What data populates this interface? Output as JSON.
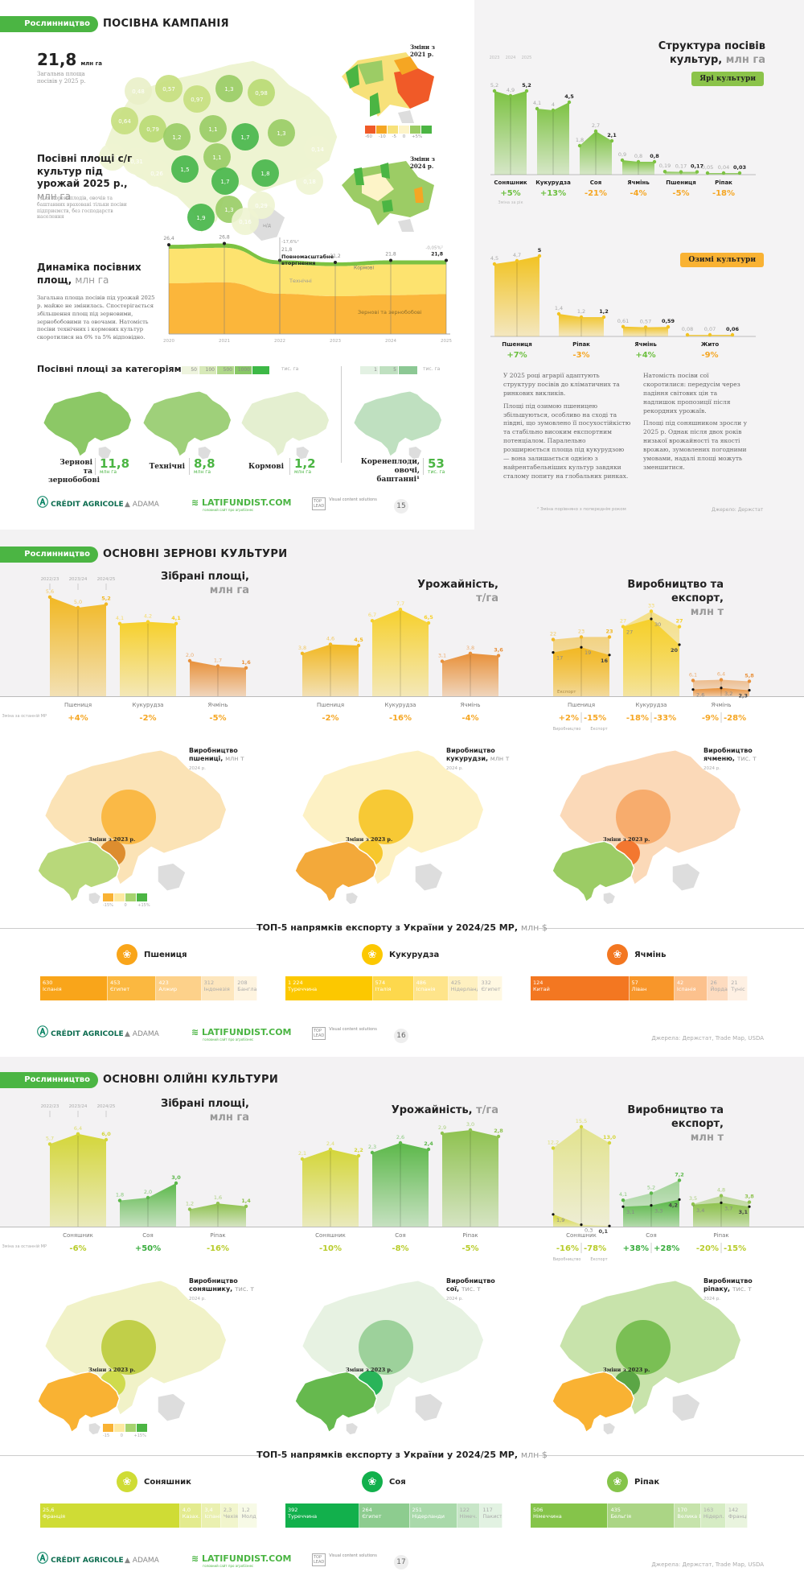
{
  "section_label": "Рослинництво",
  "colors": {
    "green": "#4bb543",
    "orange": "#f5a623",
    "yellow": "#f2c71f",
    "dark_orange": "#e57b1a",
    "red": "#f05a28",
    "sunflower": "#cddc39",
    "soy": "#4caf50"
  },
  "page1": {
    "title": "ПОСІВНА КАМПАНІЯ",
    "total_value": "21,8",
    "total_unit": "млн га",
    "total_desc": "Загальна площа посівів у 2025 р.",
    "map_title": "Посівні площі с/г культур під урожай",
    "map_title2": "2025 р.,",
    "map_unit": "млн га",
    "map_footnote": "¹ Для коренеплодів, овочів та баштанних враховані тільки посіви підприємств, без господарств населення",
    "map_regions": [
      "0,48",
      "0,57",
      "0,97",
      "1,3",
      "0,98",
      "0,64",
      "0,79",
      "1,2",
      "1,1",
      "1,1",
      "1,7",
      "1,3",
      "0,13",
      "0,31",
      "0,26",
      "1,5",
      "1,7",
      "1,8",
      "0,14",
      "0,18",
      "1,9",
      "1,3",
      "0,29",
      "0,16"
    ],
    "crimea_label": "н/д",
    "change_2021_label": "Зміни з 2021 р.",
    "change_2024_label": "Зміни з 2024 р.",
    "change_legend": [
      "-60",
      "-10",
      "-5",
      "0",
      "+5%"
    ],
    "dynamics": {
      "title": "Динаміка посівних площ,",
      "unit": "млн га",
      "text": "Загальна площа посівів під урожай 2025 р. майже не змінилась. Спостерігається збільшення площ під зерновими, зернобобовими та овочами. Натомість посіви технічних і кормових культур скоротилися на 6% та 5% відповідно.",
      "event_label": "Повномасштабне вторгнення",
      "event_change": "-17,6%²",
      "last_change": "-0,05%²",
      "layer_labels": {
        "fodder": "Кормові",
        "technical": "Технічні",
        "grain": "Зернові та зернобобові"
      }
    },
    "categories": {
      "title": "Посівні площі за категоріями",
      "legend": [
        "50",
        "100",
        "500",
        "1000"
      ],
      "legend_unit": "тис. га",
      "legend2": [
        "1",
        "5"
      ],
      "items": [
        {
          "label": "Зернові та зернобобові",
          "value": "11,8",
          "unit": "млн га"
        },
        {
          "label": "Технічні",
          "value": "8,8",
          "unit": "млн га"
        },
        {
          "label": "Кормові",
          "value": "1,2",
          "unit": "млн га"
        },
        {
          "label": "Коренеплоди, овочі, баштанні¹",
          "value": "53",
          "unit": "тис. га"
        }
      ]
    },
    "structure": {
      "title": "Структура посівів культур,",
      "unit": "млн га",
      "years": [
        "2023",
        "2024",
        "2025"
      ],
      "spring_tag": "Ярі культури",
      "winter_tag": "Озимі культури",
      "change_note": "Зміна за рік",
      "paragraphs_left": [
        "У 2025 році аграрії адаптують структуру посівів до кліматичних та ринкових викликів.",
        "Площі під озимою пшеницею збільшуються, особливо на сході та півдні, що зумовлено її посухостійкістю та стабільно високим експортним потенціалом. Паралельно розширюється площа під кукурудзою — вона залишається однією з найрентабельніших культур завдяки сталому попиту на глобальних ринках."
      ],
      "paragraphs_right": [
        "Натомість посіви сої скоротилися: передусім через падіння світових цін та надлишок пропозиції після рекордних урожаїв.",
        "Площі під соняшником зросли у 2025 р. Однак після двох років низької врожайності та якості врожаю, зумовлених погодними умовами, надалі площі можуть зменшитися."
      ],
      "footnote": "² Зміна порівняно з попереднім роком",
      "source": "Джерело: Держстат"
    },
    "page_number": "15"
  },
  "page2": {
    "title": "ОСНОВНІ ЗЕРНОВІ КУЛЬТУРИ",
    "seasons": [
      "2022/23",
      "2023/24",
      "2024/25"
    ],
    "change_note": "Зміна за останній МР",
    "area_title": "Зібрані площі,",
    "area_unit": "млн га",
    "yield_title": "Урожайність,",
    "yield_unit": "т/га",
    "prod_title": "Виробництво та експорт,",
    "prod_unit": "млн т",
    "prod_note": "Виробництво",
    "exp_note": "Експорт",
    "maps": [
      {
        "title": "Виробництво пшениці,",
        "unit": "млн т",
        "year": "2024 р."
      },
      {
        "title": "Виробництво кукурудзи,",
        "unit": "млн т",
        "year": "2024 р."
      },
      {
        "title": "Виробництво ячменю,",
        "unit": "тис. т",
        "year": "2024 р."
      }
    ],
    "changes_label": "Зміни з 2023 р.",
    "changes_legend": [
      "-15%",
      "0",
      "+15%"
    ],
    "export_title": "ТОП-5 напрямків експорту з України у 2024/25 МР,",
    "export_unit": "млн $",
    "exports": [
      {
        "crop": "Пшениця",
        "items": [
          {
            "v": "630",
            "c": "Іспанія"
          },
          {
            "v": "453",
            "c": "Єгипет"
          },
          {
            "v": "423",
            "c": "Алжир"
          },
          {
            "v": "312",
            "c": "Індонезія"
          },
          {
            "v": "208",
            "c": "Бангладеш"
          }
        ]
      },
      {
        "crop": "Кукурудза",
        "items": [
          {
            "v": "1 224",
            "c": "Туреччина"
          },
          {
            "v": "574",
            "c": "Італія"
          },
          {
            "v": "486",
            "c": "Іспанія"
          },
          {
            "v": "425",
            "c": "Нідерланд."
          },
          {
            "v": "332",
            "c": "Єгипет"
          }
        ]
      },
      {
        "crop": "Ячмінь",
        "items": [
          {
            "v": "124",
            "c": "Китай"
          },
          {
            "v": "57",
            "c": "Ліван"
          },
          {
            "v": "42",
            "c": "Іспанія"
          },
          {
            "v": "26",
            "c": "Йордан."
          },
          {
            "v": "21",
            "c": "Туніс"
          }
        ]
      }
    ],
    "source": "Джерела: Держстат, Trade Map, USDA",
    "page_number": "16"
  },
  "page3": {
    "title": "ОСНОВНІ ОЛІЙНІ КУЛЬТУРИ",
    "seasons": [
      "2022/23",
      "2023/24",
      "2024/25"
    ],
    "change_note": "Зміна за останній МР",
    "area_title": "Зібрані площі,",
    "area_unit": "млн га",
    "yield_title": "Урожайність,",
    "yield_unit": "т/га",
    "prod_title": "Виробництво та експорт,",
    "prod_unit": "млн т",
    "prod_note": "Виробництво",
    "exp_note": "Експорт",
    "maps": [
      {
        "title": "Виробництво соняшнику,",
        "unit": "тис. т",
        "year": "2024 р."
      },
      {
        "title": "Виробництво сої,",
        "unit": "тис. т",
        "year": "2024 р."
      },
      {
        "title": "Виробництво ріпаку,",
        "unit": "тис. т",
        "year": "2024 р."
      }
    ],
    "changes_label": "Зміни з 2023 р.",
    "changes_legend": [
      "-15",
      "0",
      "+15%"
    ],
    "export_title": "ТОП-5 напрямків експорту з України у 2024/25 МР,",
    "export_unit": "млн $",
    "exports": [
      {
        "crop": "Соняшник",
        "items": [
          {
            "v": "25,6",
            "c": "Франція"
          },
          {
            "v": "4,0",
            "c": "Казах."
          },
          {
            "v": "3,4",
            "c": "Іспанія"
          },
          {
            "v": "2,3",
            "c": "Чехія"
          },
          {
            "v": "1,2",
            "c": "Молдова"
          }
        ]
      },
      {
        "crop": "Соя",
        "items": [
          {
            "v": "392",
            "c": "Туреччина"
          },
          {
            "v": "264",
            "c": "Єгипет"
          },
          {
            "v": "251",
            "c": "Нідерланди"
          },
          {
            "v": "122",
            "c": "Німеч."
          },
          {
            "v": "117",
            "c": "Пакистан"
          }
        ]
      },
      {
        "crop": "Ріпак",
        "items": [
          {
            "v": "506",
            "c": "Німеччина"
          },
          {
            "v": "435",
            "c": "Бельгія"
          },
          {
            "v": "170",
            "c": "Велика Британія"
          },
          {
            "v": "163",
            "c": "Нідерл."
          },
          {
            "v": "142",
            "c": "Франція"
          }
        ]
      }
    ],
    "source": "Джерела: Держстат, Trade Map, USDA",
    "page_number": "17"
  },
  "footer_logos": {
    "ca": "CRÉDIT AGRICOLE",
    "adama": "ADAMA",
    "latifundist": "LATIFUNDIST.COM",
    "latifundist_sub": "головний сайт про агробізнес",
    "toplead": "Visual content solutions"
  },
  "chart_data": [
    {
      "id": "sown-area-dynamics",
      "type": "area",
      "title": "Динаміка посівних площ, млн га",
      "x": [
        "2020",
        "2021",
        "2022",
        "2023",
        "2024",
        "2025"
      ],
      "totals": [
        26.4,
        26.8,
        21.8,
        21.2,
        21.8,
        21.8
      ],
      "series": [
        {
          "name": "Зернові та зернобобові",
          "values": [
            15.0,
            15.3,
            11.9,
            11.2,
            11.5,
            11.8
          ]
        },
        {
          "name": "Технічні",
          "values": [
            10.2,
            10.2,
            8.7,
            8.9,
            9.1,
            8.8
          ]
        },
        {
          "name": "Кормові",
          "values": [
            1.2,
            1.3,
            1.2,
            1.1,
            1.2,
            1.2
          ]
        }
      ],
      "annotations": [
        {
          "x": "2022",
          "text": "Повномасштабне вторгнення",
          "change": "-17,6%"
        },
        {
          "x": "2025",
          "change": "-0,05%"
        }
      ]
    },
    {
      "id": "spring-crops",
      "type": "bar",
      "title": "Структура посівів культур, млн га — Ярі культури",
      "x": [
        "2023",
        "2024",
        "2025"
      ],
      "categories": [
        "Соняшник",
        "Кукурудза",
        "Соя",
        "Ячмінь",
        "Пшениця",
        "Ріпак"
      ],
      "series": [
        {
          "name": "Соняшник",
          "values": [
            5.2,
            4.9,
            5.2
          ],
          "change": "+5%"
        },
        {
          "name": "Кукурудза",
          "values": [
            4.1,
            4.0,
            4.5
          ],
          "change": "+13%"
        },
        {
          "name": "Соя",
          "values": [
            1.8,
            2.7,
            2.1
          ],
          "change": "-21%"
        },
        {
          "name": "Ячмінь",
          "values": [
            0.9,
            0.8,
            0.8
          ],
          "change": "-4%"
        },
        {
          "name": "Пшениця",
          "values": [
            0.19,
            0.17,
            0.17
          ],
          "change": "-5%"
        },
        {
          "name": "Ріпак",
          "values": [
            0.05,
            0.04,
            0.03
          ],
          "change": "-18%"
        }
      ]
    },
    {
      "id": "winter-crops",
      "type": "bar",
      "title": "Озимі культури, млн га",
      "x": [
        "2023",
        "2024",
        "2025"
      ],
      "categories": [
        "Пшениця",
        "Ріпак",
        "Ячмінь",
        "Жито"
      ],
      "series": [
        {
          "name": "Пшениця",
          "values": [
            4.5,
            4.7,
            5.0
          ],
          "change": "+7%"
        },
        {
          "name": "Ріпак",
          "values": [
            1.4,
            1.2,
            1.2
          ],
          "change": "-3%"
        },
        {
          "name": "Ячмінь",
          "values": [
            0.61,
            0.57,
            0.59
          ],
          "change": "+4%"
        },
        {
          "name": "Жито",
          "values": [
            0.08,
            0.07,
            0.06
          ],
          "change": "-9%"
        }
      ]
    },
    {
      "id": "grain-area",
      "type": "bar",
      "title": "Зібрані площі, млн га",
      "x": [
        "2022/23",
        "2023/24",
        "2024/25"
      ],
      "series": [
        {
          "name": "Пшениця",
          "values": [
            5.6,
            5.0,
            5.2
          ],
          "change": "+4%"
        },
        {
          "name": "Кукурудза",
          "values": [
            4.1,
            4.2,
            4.1
          ],
          "change": "-2%"
        },
        {
          "name": "Ячмінь",
          "values": [
            2.0,
            1.7,
            1.6
          ],
          "change": "-5%"
        }
      ]
    },
    {
      "id": "grain-yield",
      "type": "bar",
      "title": "Урожайність, т/га",
      "x": [
        "2022/23",
        "2023/24",
        "2024/25"
      ],
      "series": [
        {
          "name": "Пшениця",
          "values": [
            3.8,
            4.6,
            4.5
          ],
          "change": "-2%"
        },
        {
          "name": "Кукурудза",
          "values": [
            6.7,
            7.7,
            6.5
          ],
          "change": "-16%"
        },
        {
          "name": "Ячмінь",
          "values": [
            3.1,
            3.8,
            3.6
          ],
          "change": "-4%"
        }
      ]
    },
    {
      "id": "grain-production-export",
      "type": "bar",
      "title": "Виробництво та експорт, млн т",
      "x": [
        "2022/23",
        "2023/24",
        "2024/25"
      ],
      "series": [
        {
          "name": "Пшениця",
          "production": [
            22,
            23,
            23
          ],
          "export": [
            17,
            19,
            16
          ],
          "change_prod": "+2%",
          "change_exp": "-15%"
        },
        {
          "name": "Кукурудза",
          "production": [
            27,
            33,
            27
          ],
          "export": [
            27,
            30,
            20
          ],
          "change_prod": "-18%",
          "change_exp": "-33%"
        },
        {
          "name": "Ячмінь",
          "production": [
            6.1,
            6.4,
            5.8
          ],
          "export": [
            2.6,
            3.2,
            2.3
          ],
          "change_prod": "-9%",
          "change_exp": "-28%"
        }
      ]
    },
    {
      "id": "oil-area",
      "type": "bar",
      "title": "Зібрані площі, млн га",
      "x": [
        "2022/23",
        "2023/24",
        "2024/25"
      ],
      "series": [
        {
          "name": "Соняшник",
          "values": [
            5.7,
            6.4,
            6.0
          ],
          "change": "-6%"
        },
        {
          "name": "Соя",
          "values": [
            1.8,
            2.0,
            3.0
          ],
          "change": "+50%"
        },
        {
          "name": "Ріпак",
          "values": [
            1.2,
            1.6,
            1.4
          ],
          "change": "-16%"
        }
      ]
    },
    {
      "id": "oil-yield",
      "type": "bar",
      "title": "Урожайність, т/га",
      "x": [
        "2022/23",
        "2023/24",
        "2024/25"
      ],
      "series": [
        {
          "name": "Соняшник",
          "values": [
            2.1,
            2.4,
            2.2
          ],
          "change": "-10%"
        },
        {
          "name": "Соя",
          "values": [
            2.3,
            2.6,
            2.4
          ],
          "change": "-8%"
        },
        {
          "name": "Ріпак",
          "values": [
            2.9,
            3.0,
            2.8
          ],
          "change": "-5%"
        }
      ]
    },
    {
      "id": "oil-production-export",
      "type": "bar",
      "title": "Виробництво та експорт, млн т",
      "x": [
        "2022/23",
        "2023/24",
        "2024/25"
      ],
      "series": [
        {
          "name": "Соняшник",
          "production": [
            12.2,
            15.5,
            13.0
          ],
          "export": [
            1.9,
            0.3,
            0.1
          ],
          "change_prod": "-16%",
          "change_exp": "-78%"
        },
        {
          "name": "Соя",
          "production": [
            4.1,
            5.2,
            7.2
          ],
          "export": [
            3.1,
            3.3,
            4.2
          ],
          "change_prod": "+38%",
          "change_exp": "+28%"
        },
        {
          "name": "Ріпак",
          "production": [
            3.5,
            4.8,
            3.8
          ],
          "export": [
            3.4,
            3.7,
            3.1
          ],
          "change_prod": "-20%",
          "change_exp": "-15%"
        }
      ]
    }
  ]
}
